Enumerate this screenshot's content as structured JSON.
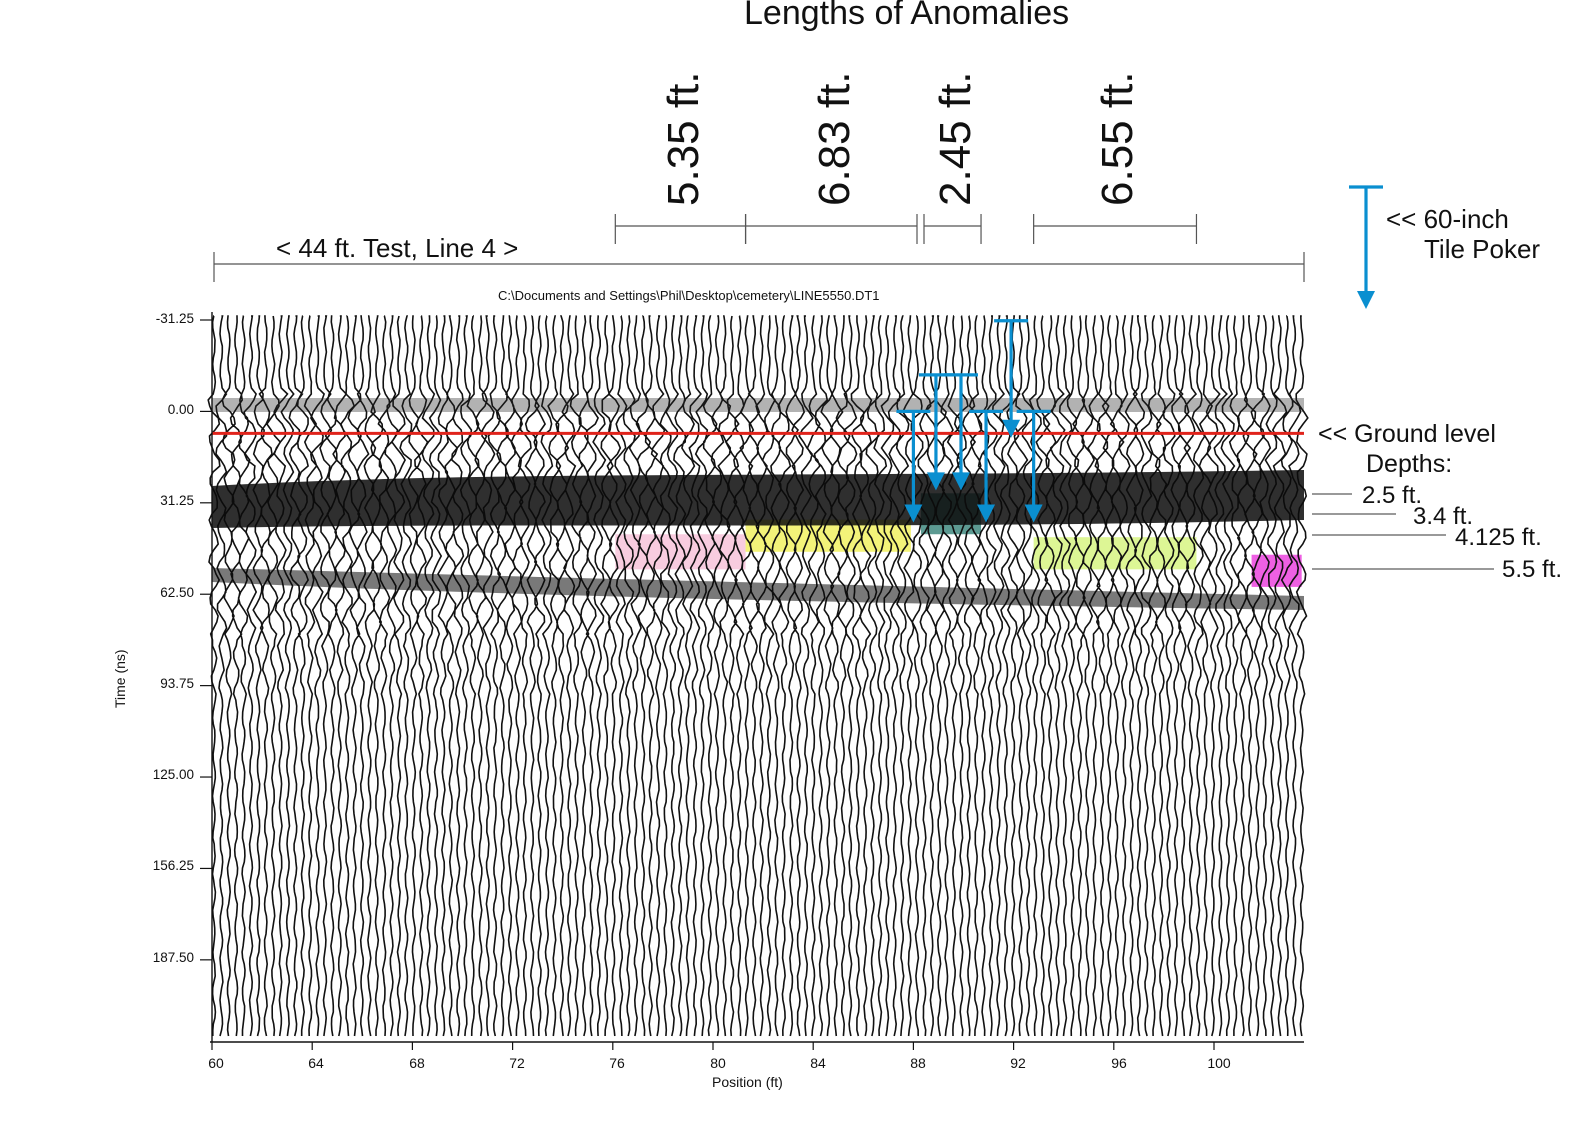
{
  "figure": {
    "title": "Lengths of Anomalies",
    "test_line_label": "<  44 ft. Test, Line 4  >",
    "tile_poker_label_1": "<< 60-inch",
    "tile_poker_label_2": "Tile Poker",
    "ground_level_label": "<< Ground level",
    "depths_title": "Depths:",
    "file_path": "C:\\Documents and Settings\\Phil\\Desktop\\cemetery\\LINE5550.DT1",
    "anomaly_lengths": [
      "5.35 ft.",
      "6.83 ft.",
      "2.45 ft.",
      "6.55 ft."
    ],
    "depth_labels": [
      "2.5 ft.",
      "3.4 ft.",
      "4.125 ft.",
      "5.5 ft."
    ]
  },
  "colors": {
    "ground_line": "#e0231b",
    "poker_arrow": "#0a8fd0",
    "anomaly_pink": "#f7c6dc",
    "anomaly_yellow": "#f2f26a",
    "anomaly_teal": "#4a8f86",
    "anomaly_lime": "#d9f58a",
    "anomaly_magenta": "#ec4fe0"
  },
  "chart_data": {
    "type": "radargram",
    "title": "C:\\Documents and Settings\\Phil\\Desktop\\cemetery\\LINE5550.DT1",
    "xlabel": "Position (ft)",
    "ylabel": "Time (ns)",
    "xlim": [
      60,
      103.5
    ],
    "ylim": [
      -31.25,
      218
    ],
    "y_inverted": true,
    "x_ticks": [
      60,
      64,
      68,
      72,
      76,
      80,
      84,
      88,
      92,
      96,
      100
    ],
    "y_ticks": [
      -31.25,
      0,
      31.25,
      62.5,
      93.75,
      125,
      156.25,
      187.5
    ],
    "y_tick_labels": [
      "-31.25",
      "0.00",
      "31.25",
      "62.50",
      "93.75",
      "125.00",
      "156.25",
      "187.50"
    ],
    "ground_level_ns": 7.5,
    "anomalies": [
      {
        "length": "5.35 ft.",
        "x_start": 76.1,
        "x_end": 81.3,
        "t_top": 42,
        "t_bottom": 54,
        "color": "pink"
      },
      {
        "length": "6.83 ft.",
        "x_start": 81.3,
        "x_end": 87.9,
        "t_top": 37,
        "t_bottom": 48,
        "color": "yellow"
      },
      {
        "length": "2.45 ft.",
        "x_start": 88.3,
        "x_end": 90.7,
        "t_top": 28,
        "t_bottom": 42,
        "color": "teal"
      },
      {
        "length": "6.55 ft.",
        "x_start": 92.8,
        "x_end": 99.3,
        "t_top": 43,
        "t_bottom": 54,
        "color": "lime"
      },
      {
        "length": "",
        "x_start": 101.5,
        "x_end": 103.5,
        "t_top": 49,
        "t_bottom": 60,
        "color": "magenta"
      }
    ],
    "depths": [
      {
        "label": "2.5 ft.",
        "t": 29
      },
      {
        "label": "3.4 ft.",
        "t": 36
      },
      {
        "label": "4.125 ft.",
        "t": 43
      },
      {
        "label": "5.5 ft.",
        "t": 54
      }
    ],
    "pokers": [
      {
        "x": 88.0,
        "t_top": 0,
        "t_tip": 38
      },
      {
        "x": 88.9,
        "t_top": -12.5,
        "t_tip": 27
      },
      {
        "x": 89.9,
        "t_top": -12.5,
        "t_tip": 27
      },
      {
        "x": 90.9,
        "t_top": 0,
        "t_tip": 38
      },
      {
        "x": 91.9,
        "t_top": -31,
        "t_tip": 9
      },
      {
        "x": 92.8,
        "t_top": 0,
        "t_tip": 38
      }
    ]
  }
}
